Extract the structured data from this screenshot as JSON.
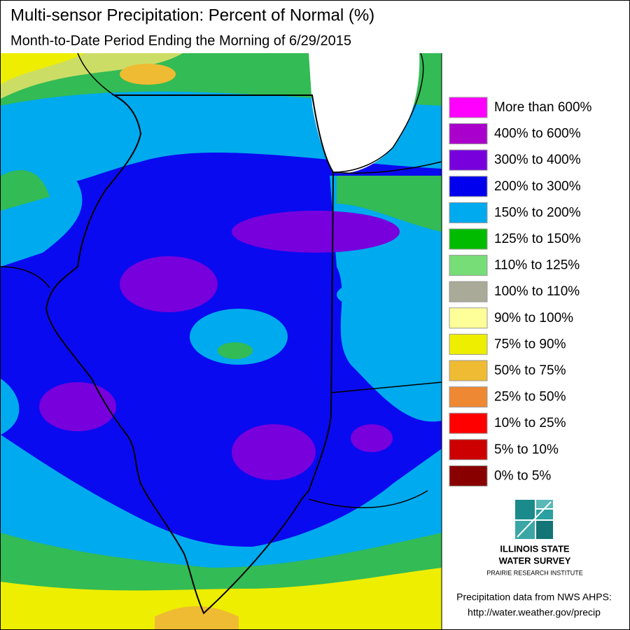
{
  "header": {
    "title": "Multi-sensor Precipitation: Percent of Normal (%)",
    "subtitle": "Month-to-Date Period Ending the Morning of 6/29/2015"
  },
  "legend": {
    "items": [
      {
        "label": "More than 600%",
        "color": "#ff00ff"
      },
      {
        "label": "400% to 600%",
        "color": "#aa00cc"
      },
      {
        "label": "300% to 400%",
        "color": "#7700dd"
      },
      {
        "label": "200% to 300%",
        "color": "#0000ee"
      },
      {
        "label": "150% to 200%",
        "color": "#00aaee"
      },
      {
        "label": "125% to 150%",
        "color": "#00bb00"
      },
      {
        "label": "110% to 125%",
        "color": "#77dd77"
      },
      {
        "label": "100% to 110%",
        "color": "#aaaa99"
      },
      {
        "label": "90% to 100%",
        "color": "#ffff99"
      },
      {
        "label": "75% to 90%",
        "color": "#eeee00"
      },
      {
        "label": "50% to 75%",
        "color": "#eebb33"
      },
      {
        "label": "25% to 50%",
        "color": "#ee8833"
      },
      {
        "label": "10% to 25%",
        "color": "#ff0000"
      },
      {
        "label": "5% to 10%",
        "color": "#cc0000"
      },
      {
        "label": "0% to 5%",
        "color": "#880000"
      }
    ]
  },
  "logo": {
    "line1": "ILLINOIS STATE",
    "line2": "WATER SURVEY",
    "line3": "PRAIRIE RESEARCH INSTITUTE"
  },
  "credit": {
    "line1": "Precipitation data from NWS AHPS:",
    "line2": "http://water.weather.gov/precip"
  }
}
